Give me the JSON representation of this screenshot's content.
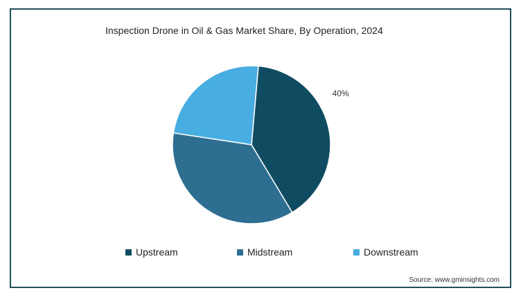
{
  "chart_data": {
    "type": "pie",
    "title": "Inspection Drone in Oil & Gas Market Share, By Operation, 2024",
    "categories": [
      "Upstream",
      "Midstream",
      "Downstream"
    ],
    "values": [
      40,
      36,
      24
    ],
    "data_labels": [
      "40%",
      "",
      ""
    ],
    "colors": [
      "#0f4c62",
      "#2e6e91",
      "#48ade0"
    ],
    "legend": {
      "position": "bottom",
      "entries": [
        "Upstream",
        "Midstream",
        "Downstream"
      ]
    },
    "source": "Source: www.gminsights.com"
  }
}
